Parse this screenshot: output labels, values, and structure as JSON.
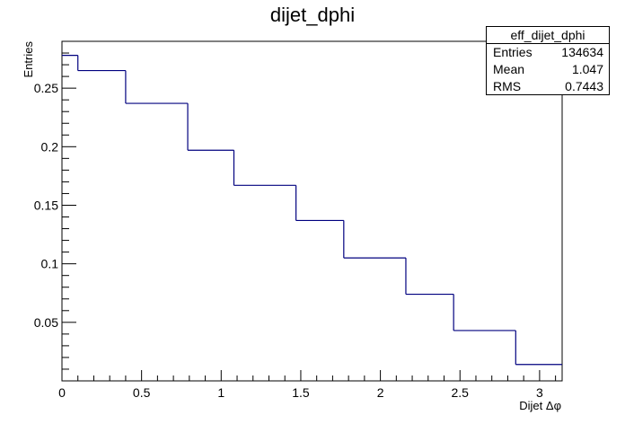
{
  "chart_data": {
    "type": "histogram",
    "title": "dijet_dphi",
    "xlabel": "Dijet Δφ",
    "ylabel": "Entries",
    "xlim": [
      0,
      3.1416
    ],
    "ylim": [
      0,
      0.29
    ],
    "x_ticks": [
      0,
      0.5,
      1,
      1.5,
      2,
      2.5,
      3
    ],
    "x_tick_labels": [
      "0",
      "0.5",
      "1",
      "1.5",
      "2",
      "2.5",
      "3"
    ],
    "y_ticks": [
      0.05,
      0.1,
      0.15,
      0.2,
      0.25
    ],
    "y_tick_labels": [
      "0.05",
      "0.1",
      "0.15",
      "0.2",
      "0.25"
    ],
    "bin_edges": [
      0,
      0.1,
      0.4,
      0.79,
      1.08,
      1.47,
      1.77,
      2.16,
      2.46,
      2.85,
      3.1416
    ],
    "values": [
      0.278,
      0.265,
      0.237,
      0.197,
      0.167,
      0.137,
      0.105,
      0.074,
      0.043,
      0.014
    ],
    "line_color": "#00007f",
    "stats_box": {
      "name": "eff_dijet_dphi",
      "rows": [
        {
          "label": "Entries",
          "value": "134634"
        },
        {
          "label": "Mean",
          "value": "1.047"
        },
        {
          "label": "RMS",
          "value": "0.7443"
        }
      ]
    }
  }
}
